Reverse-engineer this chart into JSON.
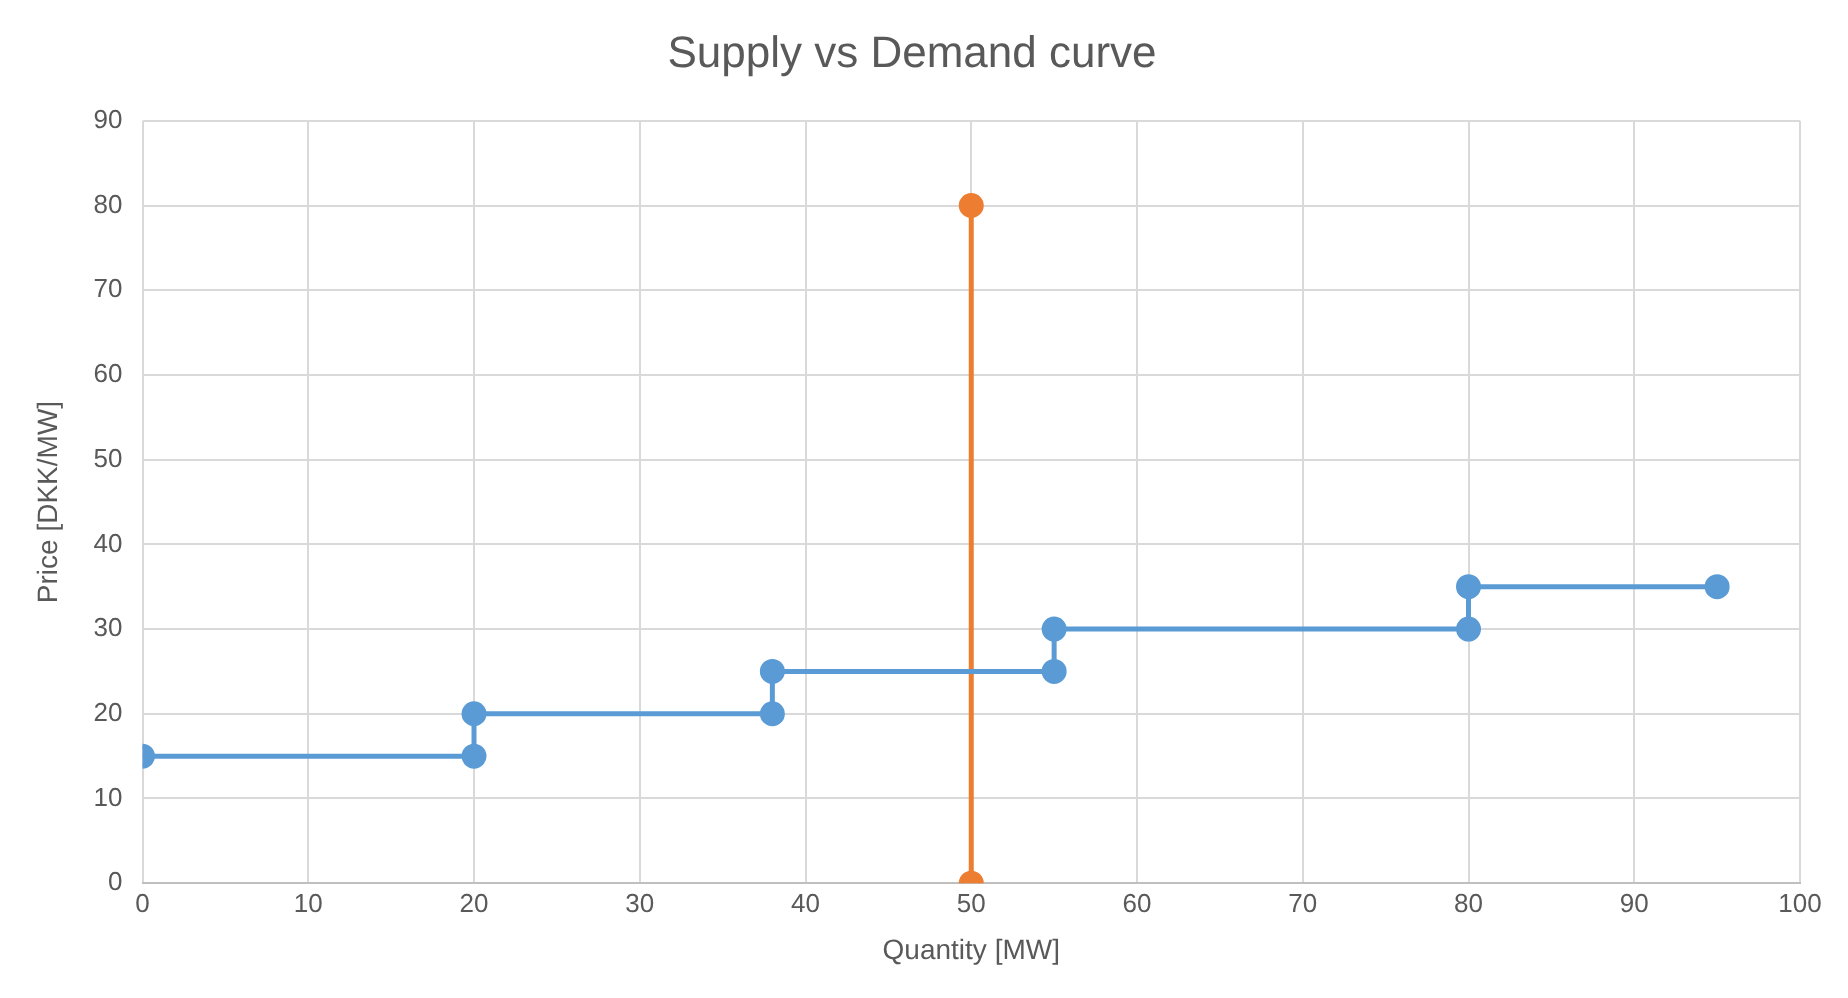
{
  "chart_data": {
    "type": "line",
    "title": "Supply vs Demand curve",
    "xlabel": "Quantity [MW]",
    "ylabel": "Price [DKK/MW]",
    "series": [
      {
        "color": "#5b9bd5",
        "x": [
          0,
          20,
          20,
          38,
          38,
          55,
          55,
          80,
          80,
          95
        ],
        "values": [
          15,
          15,
          20,
          20,
          25,
          25,
          30,
          30,
          35,
          35
        ]
      },
      {
        "color": "#ed7d31",
        "x": [
          50,
          50
        ],
        "values": [
          0,
          80
        ]
      }
    ],
    "xlim": [
      0,
      100
    ],
    "xticks": [
      0,
      10,
      20,
      30,
      40,
      50,
      60,
      70,
      80,
      90,
      100
    ],
    "ylim": [
      0,
      90
    ],
    "yticks": [
      0,
      10,
      20,
      30,
      40,
      50,
      60,
      70,
      80,
      90
    ],
    "grid": true,
    "legend": false,
    "marker": "circle",
    "line_style": "solid"
  }
}
